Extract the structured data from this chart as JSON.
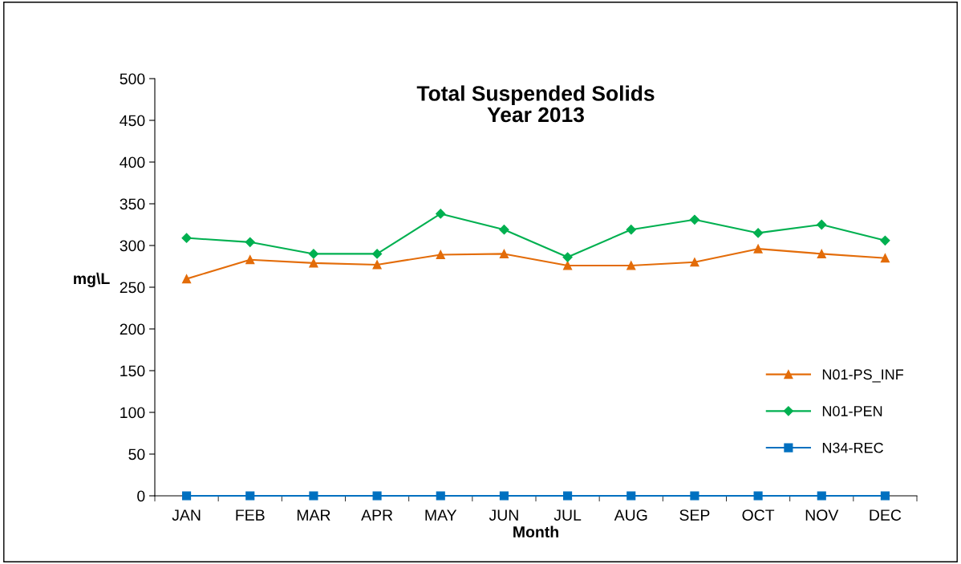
{
  "chart_data": {
    "type": "line",
    "title": "Total Suspended Solids\nYear 2013",
    "xlabel": "Month",
    "ylabel": "mg\\L",
    "categories": [
      "JAN",
      "FEB",
      "MAR",
      "APR",
      "MAY",
      "JUN",
      "JUL",
      "AUG",
      "SEP",
      "OCT",
      "NOV",
      "DEC"
    ],
    "series": [
      {
        "name": "N01-PS_INF",
        "color": "#e36c09",
        "marker": "triangle",
        "values": [
          260,
          283,
          279,
          277,
          289,
          290,
          276,
          276,
          280,
          296,
          290,
          285
        ]
      },
      {
        "name": "N01-PEN",
        "color": "#00b050",
        "marker": "diamond",
        "values": [
          309,
          304,
          290,
          290,
          338,
          319,
          286,
          319,
          331,
          315,
          325,
          306
        ]
      },
      {
        "name": "N34-REC",
        "color": "#0070c0",
        "marker": "square",
        "values": [
          0,
          0,
          0,
          0,
          0,
          0,
          0,
          0,
          0,
          0,
          0,
          0
        ]
      }
    ],
    "ylim": [
      0,
      500
    ],
    "yticks": [
      0,
      50,
      100,
      150,
      200,
      250,
      300,
      350,
      400,
      450,
      500
    ],
    "grid": false,
    "legend": "right",
    "line_style": "solid"
  }
}
